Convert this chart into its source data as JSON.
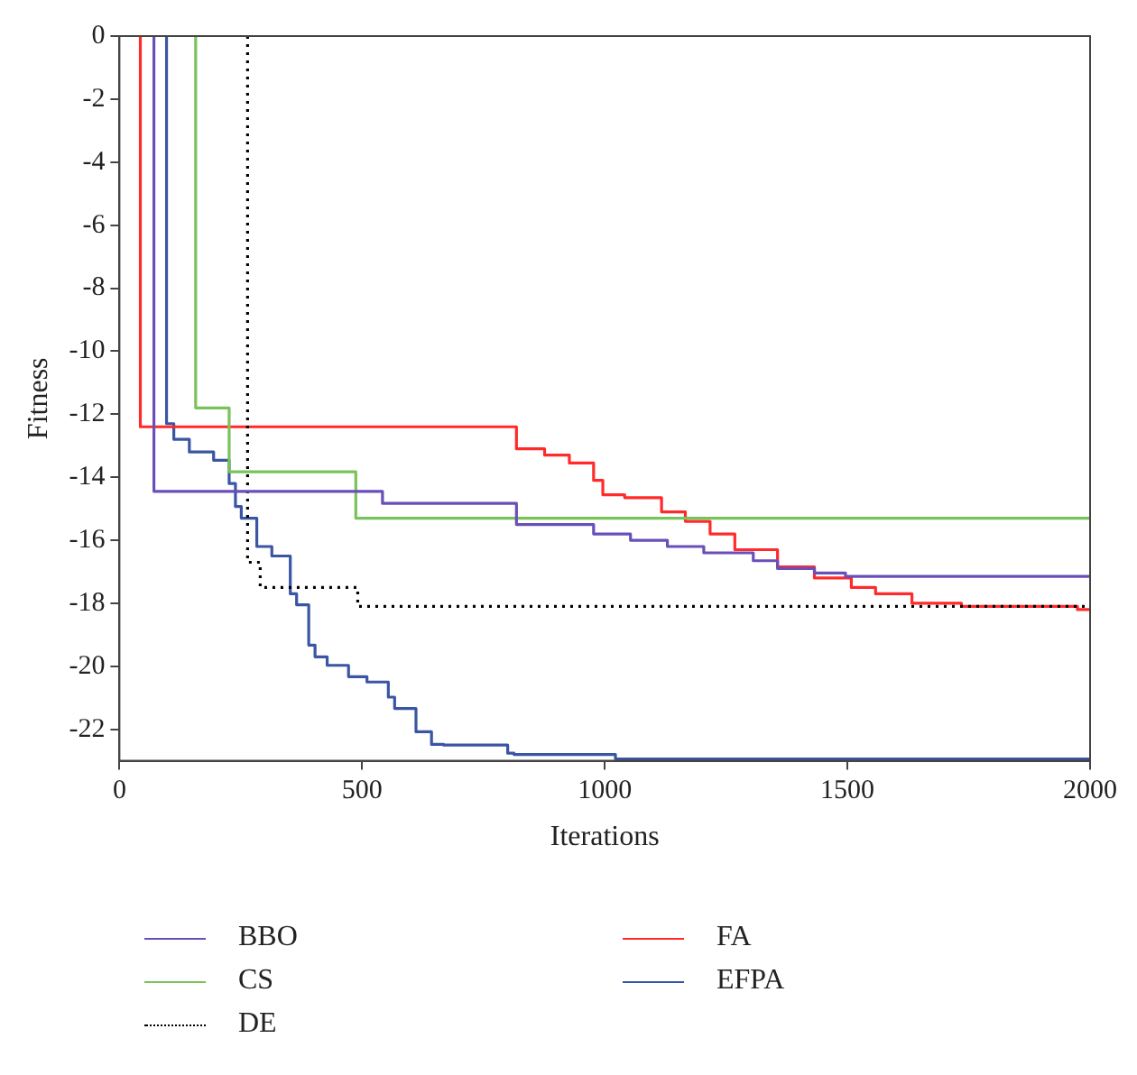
{
  "chart_data": {
    "type": "step",
    "xlabel": "Iterations",
    "ylabel": "Fitness",
    "xlim": [
      0,
      2000
    ],
    "xticks": [
      0,
      500,
      1000,
      1500,
      2000
    ],
    "ylim": [
      -23,
      0
    ],
    "yticks": [
      0,
      -2,
      -4,
      -6,
      -8,
      -10,
      -12,
      -14,
      -16,
      -18,
      -20,
      -22
    ],
    "grid": false,
    "legend": "bottom",
    "marker": "none",
    "series": [
      {
        "name": "BBO",
        "color": "#6a4fb8",
        "line_style": "solid",
        "x": [
          71,
          71,
          75,
          542,
          542,
          818,
          818,
          977,
          1053,
          1129,
          1204,
          1306,
          1356,
          1432,
          1496,
          1534,
          2000
        ],
        "values": [
          0,
          -13.3,
          -14.45,
          -14.45,
          -14.83,
          -14.83,
          -15.16,
          -15.5,
          -15.8,
          -16.0,
          -16.2,
          -16.4,
          -16.65,
          -16.9,
          -17.04,
          -17.15,
          -17.15
        ]
      },
      {
        "name": "CS",
        "color": "#7ac25a",
        "line_style": "solid",
        "x": [
          157,
          157,
          226,
          226,
          487,
          487,
          2000
        ],
        "values": [
          0,
          -11.8,
          -11.8,
          -13.83,
          -13.83,
          -15.3,
          -15.3
        ]
      },
      {
        "name": "DE",
        "color": "#000000",
        "line_style": "dotted",
        "x": [
          264,
          264,
          290,
          359,
          491,
          548,
          2000
        ],
        "values": [
          0,
          -16.65,
          -16.7,
          -17.5,
          -17.5,
          -18.1,
          -18.1
        ]
      },
      {
        "name": "FA",
        "color": "#ff2a2a",
        "line_style": "solid",
        "x": [
          43,
          43,
          818,
          818,
          876,
          927,
          977,
          996,
          1041,
          1117,
          1166,
          1217,
          1268,
          1356,
          1432,
          1508,
          1558,
          1633,
          1735,
          1849,
          1974,
          2000
        ],
        "values": [
          0,
          -12.4,
          -12.4,
          -12.85,
          -13.1,
          -13.3,
          -13.55,
          -14.1,
          -14.56,
          -14.65,
          -15.1,
          -15.4,
          -15.8,
          -16.3,
          -16.85,
          -17.2,
          -17.5,
          -17.7,
          -18.0,
          -18.1,
          -18.1,
          -18.2
        ]
      },
      {
        "name": "EFPA",
        "color": "#3a55a4",
        "line_style": "solid",
        "x": [
          97,
          97,
          112,
          144,
          194,
          226,
          239,
          251,
          283,
          314,
          352,
          365,
          390,
          403,
          428,
          472,
          510,
          554,
          567,
          611,
          643,
          668,
          800,
          813,
          1022,
          1609,
          2000
        ],
        "values": [
          0,
          -11.9,
          -12.3,
          -12.8,
          -13.2,
          -13.46,
          -14.2,
          -14.93,
          -15.3,
          -16.2,
          -16.5,
          -17.7,
          -18.05,
          -19.33,
          -19.7,
          -19.97,
          -20.33,
          -20.5,
          -20.98,
          -21.34,
          -22.08,
          -22.48,
          -22.5,
          -22.76,
          -22.8,
          -22.94,
          -22.94
        ]
      }
    ]
  }
}
